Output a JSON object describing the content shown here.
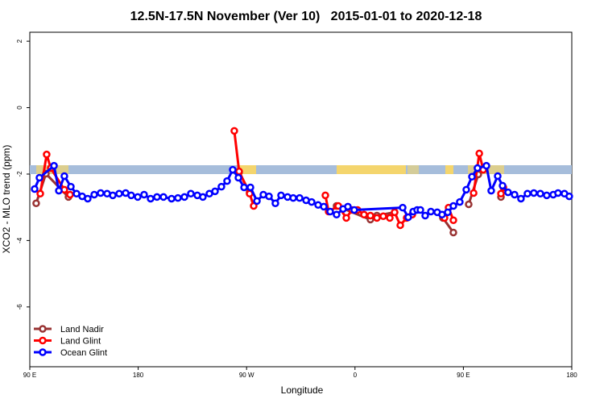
{
  "chart_data": {
    "type": "line",
    "title": "12.5N-17.5N November (Ver 10)   2015-01-01 to 2020-12-18",
    "x_label": "Longitude",
    "y_label": "XCO2 - MLO trend (ppm)",
    "xlim": [
      90,
      540
    ],
    "ylim": [
      -7.8,
      2.27
    ],
    "xticks": [
      {
        "value": 90,
        "label": "90 E"
      },
      180,
      {
        "value": 270,
        "label": "90 W"
      },
      {
        "value": 360,
        "label": "0"
      },
      {
        "value": 450,
        "label": "90 E"
      },
      {
        "value": 540,
        "label": "180"
      }
    ],
    "yticks": [
      -6,
      -4,
      -2,
      0,
      2
    ],
    "legend": "bottom-left",
    "series": [
      {
        "name": "Land Nadir",
        "color": "#993333",
        "x": [
          95.3,
          103.4,
          122.1,
          null,
          263.8,
          272.5,
          null,
          344.7,
          372.8,
          378.2,
          392.9,
          null,
          433.0,
          441.7,
          null,
          454.4,
          462.4,
          null,
          481.2
        ],
        "values": [
          -2.88,
          -1.99,
          -2.69,
          null,
          -1.94,
          -2.55,
          null,
          -2.96,
          -3.37,
          -3.25,
          -3.15,
          null,
          -3.32,
          -3.76,
          null,
          -2.91,
          -2.01,
          null,
          -2.69
        ]
      },
      {
        "name": "Land Glint",
        "color": "#ff0000",
        "x": [
          98.7,
          104.0,
          107.4,
          118.7,
          123.4,
          null,
          259.8,
          263.8,
          272.5,
          275.9,
          null,
          335.4,
          338.1,
          346.1,
          352.8,
          357.5,
          362.1,
          367.5,
          372.8,
          378.2,
          383.5,
          388.9,
          392.9,
          397.6,
          402.9,
          407.6,
          null,
          434.3,
          437.7,
          441.7,
          null,
          458.5,
          463.2,
          466.5,
          null,
          481.2,
          483.2
        ],
        "values": [
          -2.59,
          -1.41,
          -1.82,
          -2.47,
          -2.62,
          null,
          -0.7,
          -1.92,
          -2.59,
          -2.96,
          null,
          -2.64,
          -3.13,
          -2.96,
          -3.32,
          -3.08,
          -3.08,
          -3.22,
          -3.25,
          -3.32,
          -3.27,
          -3.32,
          -3.15,
          -3.54,
          -3.32,
          -3.22,
          null,
          -3.32,
          -3.01,
          -3.39,
          null,
          -2.57,
          -1.38,
          -1.87,
          null,
          -2.59,
          -2.4
        ]
      },
      {
        "name": "Ocean Glint",
        "color": "#0000ff",
        "x": [
          94.0,
          98.0,
          110.1,
          114.1,
          118.7,
          124.1,
          128.8,
          133.5,
          138.1,
          143.5,
          148.8,
          154.2,
          158.9,
          164.2,
          169.6,
          174.2,
          179.6,
          184.9,
          190.3,
          195.6,
          201.0,
          207.7,
          213.0,
          218.4,
          223.7,
          229.1,
          233.7,
          239.1,
          243.8,
          249.1,
          253.8,
          258.5,
          263.2,
          267.9,
          273.2,
          278.6,
          283.9,
          288.6,
          293.9,
          298.6,
          304.0,
          308.7,
          314.0,
          319.4,
          324.0,
          329.4,
          334.1,
          339.4,
          344.7,
          350.1,
          354.1,
          359.4,
          399.6,
          404.2,
          408.3,
          411.6,
          414.3,
          418.3,
          423.0,
          428.3,
          432.3,
          437.0,
          441.7,
          447.0,
          452.4,
          457.1,
          461.7,
          469.1,
          473.1,
          478.5,
          482.5,
          487.1,
          492.5,
          497.8,
          503.2,
          508.5,
          513.9,
          519.2,
          524.6,
          528.6,
          533.9,
          537.9
        ],
        "values": [
          -2.45,
          -2.11,
          -1.75,
          -2.5,
          -2.06,
          -2.38,
          -2.59,
          -2.67,
          -2.74,
          -2.62,
          -2.57,
          -2.59,
          -2.64,
          -2.59,
          -2.57,
          -2.64,
          -2.69,
          -2.62,
          -2.74,
          -2.69,
          -2.69,
          -2.74,
          -2.72,
          -2.69,
          -2.59,
          -2.64,
          -2.69,
          -2.59,
          -2.52,
          -2.38,
          -2.21,
          -1.87,
          -2.11,
          -2.4,
          -2.4,
          -2.81,
          -2.62,
          -2.67,
          -2.88,
          -2.64,
          -2.69,
          -2.72,
          -2.72,
          -2.79,
          -2.84,
          -2.93,
          -2.98,
          -3.13,
          -3.22,
          -3.05,
          -2.98,
          -3.08,
          -3.01,
          -3.3,
          -3.13,
          -3.08,
          -3.08,
          -3.25,
          -3.13,
          -3.15,
          -3.22,
          -3.15,
          -2.96,
          -2.84,
          -2.47,
          -2.08,
          -1.82,
          -1.75,
          -2.5,
          -2.06,
          -2.35,
          -2.55,
          -2.62,
          -2.74,
          -2.59,
          -2.57,
          -2.59,
          -2.64,
          -2.62,
          -2.57,
          -2.59,
          -2.67
        ]
      }
    ]
  }
}
